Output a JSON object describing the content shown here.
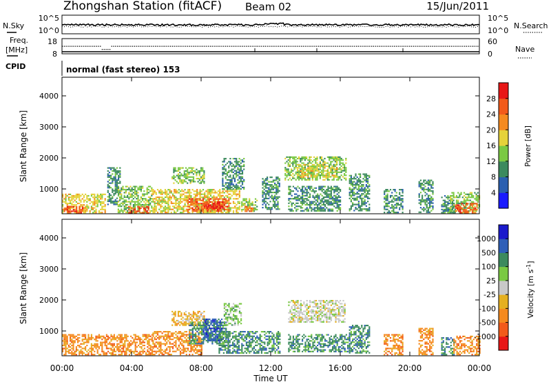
{
  "header": {
    "title": "Zhongshan Station (fitACF)",
    "beam": "Beam 02",
    "date": "15/Jun/2011"
  },
  "sky_panel": {
    "left_label": "N.Sky",
    "left_ticks": [
      "10^5",
      "10^0"
    ],
    "right_label": "N.Search",
    "right_ticks": [
      "10^5",
      "10^0"
    ]
  },
  "freq_panel": {
    "left_label_1": "Freq.",
    "left_label_2": "[MHz]",
    "left_ticks": [
      "18",
      "8"
    ],
    "right_label": "Nave",
    "right_ticks": [
      "60",
      "0"
    ]
  },
  "cpid": {
    "label": "CPID",
    "mode_text": "normal (fast stereo) 153"
  },
  "colors": {
    "power_scale": [
      "#1a1aff",
      "#2b5fb0",
      "#3c8a5e",
      "#7ac943",
      "#e5d23a",
      "#f58a1f",
      "#f25a1a",
      "#e81616"
    ],
    "velocity_scale": [
      "#1a1acc",
      "#2f5fb8",
      "#3c8a5e",
      "#7ac943",
      "#c8c8c8",
      "#e5b020",
      "#f58a1f",
      "#f25a1a",
      "#e81616"
    ],
    "axes": "#000000"
  },
  "chart_data": [
    {
      "type": "heatmap",
      "panel": "power",
      "title": "",
      "xlabel": "Time UT",
      "ylabel": "Slant Range [km]",
      "x_ticks": [
        "00:00",
        "04:00",
        "08:00",
        "12:00",
        "16:00",
        "20:00",
        "00:00"
      ],
      "xlim_hours": [
        0,
        24
      ],
      "y_ticks": [
        "1000",
        "2000",
        "3000",
        "4000"
      ],
      "ylim": [
        200,
        4600
      ],
      "colorbar": {
        "label": "Power [dB]",
        "ticks": [
          "4",
          "8",
          "12",
          "16",
          "20",
          "24",
          "28"
        ],
        "range": [
          0,
          32
        ]
      },
      "regions": [
        {
          "t0": 0.0,
          "t1": 2.5,
          "r0": 250,
          "r1": 850,
          "level": 16
        },
        {
          "t0": 0.1,
          "t1": 1.2,
          "r0": 250,
          "r1": 450,
          "level": 26
        },
        {
          "t0": 2.6,
          "t1": 3.3,
          "r0": 500,
          "r1": 1700,
          "level": 8
        },
        {
          "t0": 3.2,
          "t1": 5.2,
          "r0": 250,
          "r1": 1100,
          "level": 14
        },
        {
          "t0": 3.8,
          "t1": 5.0,
          "r0": 250,
          "r1": 450,
          "level": 27
        },
        {
          "t0": 5.2,
          "t1": 10.2,
          "r0": 250,
          "r1": 1000,
          "level": 17
        },
        {
          "t0": 7.2,
          "t1": 9.6,
          "r0": 300,
          "r1": 700,
          "level": 25
        },
        {
          "t0": 8.3,
          "t1": 9.2,
          "r0": 350,
          "r1": 600,
          "level": 28
        },
        {
          "t0": 6.3,
          "t1": 8.2,
          "r0": 1200,
          "r1": 1700,
          "level": 13
        },
        {
          "t0": 9.2,
          "t1": 10.5,
          "r0": 1000,
          "r1": 2000,
          "level": 10
        },
        {
          "t0": 10.3,
          "t1": 11.2,
          "r0": 300,
          "r1": 700,
          "level": 14
        },
        {
          "t0": 10.5,
          "t1": 11.0,
          "r0": 300,
          "r1": 450,
          "level": 23
        },
        {
          "t0": 11.5,
          "t1": 12.5,
          "r0": 350,
          "r1": 1400,
          "level": 9
        },
        {
          "t0": 12.8,
          "t1": 16.3,
          "r0": 1300,
          "r1": 2050,
          "level": 12
        },
        {
          "t0": 13.5,
          "t1": 15.8,
          "r0": 1400,
          "r1": 1800,
          "level": 18
        },
        {
          "t0": 13.0,
          "t1": 16.0,
          "r0": 300,
          "r1": 1100,
          "level": 9
        },
        {
          "t0": 16.5,
          "t1": 17.7,
          "r0": 300,
          "r1": 1500,
          "level": 8
        },
        {
          "t0": 18.5,
          "t1": 19.6,
          "r0": 250,
          "r1": 1000,
          "level": 10
        },
        {
          "t0": 20.5,
          "t1": 21.3,
          "r0": 250,
          "r1": 1300,
          "level": 11
        },
        {
          "t0": 21.8,
          "t1": 22.5,
          "r0": 250,
          "r1": 800,
          "level": 9
        },
        {
          "t0": 22.3,
          "t1": 24.0,
          "r0": 250,
          "r1": 900,
          "level": 12
        },
        {
          "t0": 22.6,
          "t1": 23.9,
          "r0": 250,
          "r1": 550,
          "level": 27
        }
      ]
    },
    {
      "type": "heatmap",
      "panel": "velocity",
      "title": "",
      "xlabel": "Time UT",
      "ylabel": "Slant Range [km]",
      "x_ticks": [
        "00:00",
        "04:00",
        "08:00",
        "12:00",
        "16:00",
        "20:00",
        "00:00"
      ],
      "xlim_hours": [
        0,
        24
      ],
      "y_ticks": [
        "1000",
        "2000",
        "3000",
        "4000"
      ],
      "ylim": [
        200,
        4600
      ],
      "colorbar": {
        "label": "Velocity [m s",
        "label_exponent": "-1",
        "label_end": "]",
        "ticks": [
          "1000",
          "500",
          "100",
          "25",
          "-25",
          "-100",
          "-500",
          "-1000"
        ]
      },
      "regions": [
        {
          "t0": 0.0,
          "t1": 5.2,
          "r0": 250,
          "r1": 900,
          "class": 6
        },
        {
          "t0": 5.2,
          "t1": 8.0,
          "r0": 250,
          "r1": 1000,
          "class": 6
        },
        {
          "t0": 6.3,
          "t1": 8.2,
          "r0": 1200,
          "r1": 1650,
          "class": 5
        },
        {
          "t0": 7.3,
          "t1": 9.4,
          "r0": 600,
          "r1": 1300,
          "class": 2
        },
        {
          "t0": 8.1,
          "t1": 9.2,
          "r0": 700,
          "r1": 1400,
          "class": 1
        },
        {
          "t0": 9.0,
          "t1": 12.5,
          "r0": 300,
          "r1": 1000,
          "class": 2
        },
        {
          "t0": 9.3,
          "t1": 10.3,
          "r0": 1200,
          "r1": 1900,
          "class": 3
        },
        {
          "t0": 13.0,
          "t1": 16.3,
          "r0": 1300,
          "r1": 2000,
          "class": 4
        },
        {
          "t0": 13.0,
          "t1": 16.5,
          "r0": 350,
          "r1": 900,
          "class": 2
        },
        {
          "t0": 16.5,
          "t1": 17.7,
          "r0": 300,
          "r1": 1200,
          "class": 2
        },
        {
          "t0": 18.5,
          "t1": 19.6,
          "r0": 250,
          "r1": 900,
          "class": 6
        },
        {
          "t0": 20.5,
          "t1": 21.3,
          "r0": 250,
          "r1": 1100,
          "class": 6
        },
        {
          "t0": 21.8,
          "t1": 22.5,
          "r0": 250,
          "r1": 800,
          "class": 2
        },
        {
          "t0": 22.5,
          "t1": 24.0,
          "r0": 250,
          "r1": 850,
          "class": 6
        }
      ]
    }
  ]
}
